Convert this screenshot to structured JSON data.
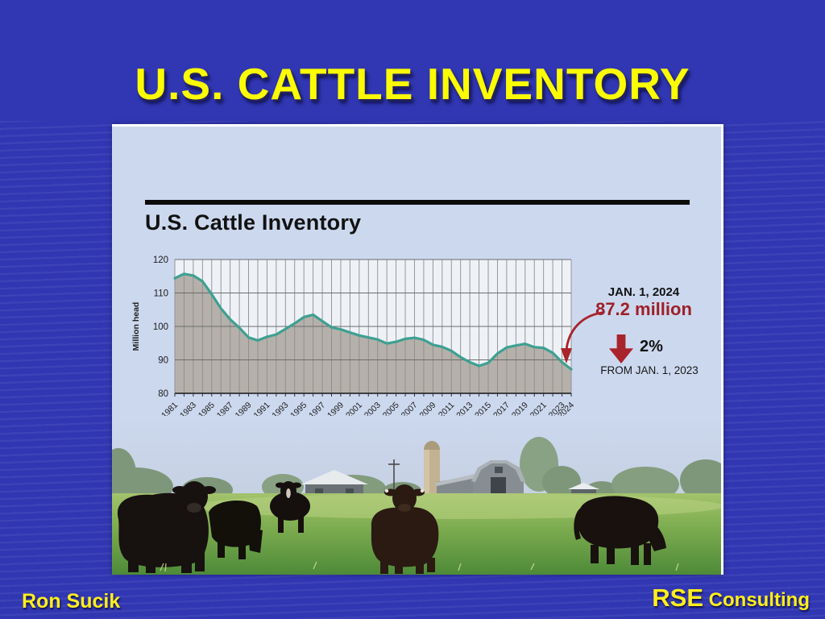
{
  "slide": {
    "title": "U.S. CATTLE INVENTORY",
    "footer": {
      "author": "Ron Sucik",
      "company_bold": "RSE",
      "company_rest": " Consulting"
    },
    "colors": {
      "title_yellow": "#fbfb02",
      "footer_yellow": "#ffee1e",
      "background_blue": "#3137b3"
    }
  },
  "figure": {
    "heading": "U.S. Cattle Inventory",
    "annotations": {
      "date_label": "JAN. 1, 2024",
      "value_label": "87.2 million",
      "percent_label": "2%",
      "from_label": "FROM JAN. 1, 2023",
      "accent_red": "#a8242a"
    },
    "scene_description": "cattle grazing in a green pasture with barns and a silo"
  },
  "chart_data": {
    "type": "area",
    "title": "U.S. Cattle Inventory",
    "xlabel": "",
    "ylabel": "Million head",
    "ylim": [
      80,
      120
    ],
    "y_ticks": [
      80,
      90,
      100,
      110,
      120
    ],
    "grid": true,
    "line_color": "#3ea092",
    "area_color": "#b5b1aa",
    "plot_bg": "#eef2f7",
    "x": [
      1981,
      1982,
      1983,
      1984,
      1985,
      1986,
      1987,
      1988,
      1989,
      1990,
      1991,
      1992,
      1993,
      1994,
      1995,
      1996,
      1997,
      1998,
      1999,
      2000,
      2001,
      2002,
      2003,
      2004,
      2005,
      2006,
      2007,
      2008,
      2009,
      2010,
      2011,
      2012,
      2013,
      2014,
      2015,
      2016,
      2017,
      2018,
      2019,
      2020,
      2021,
      2022,
      2023,
      2024
    ],
    "values": [
      114.4,
      115.7,
      115.2,
      113.5,
      109.6,
      105.4,
      102.1,
      99.6,
      96.7,
      95.8,
      96.9,
      97.6,
      99.2,
      100.9,
      102.8,
      103.5,
      101.6,
      99.7,
      99.1,
      98.2,
      97.3,
      96.7,
      96.1,
      94.9,
      95.4,
      96.3,
      96.6,
      96.0,
      94.5,
      93.9,
      92.7,
      90.8,
      89.3,
      88.2,
      89.1,
      91.9,
      93.7,
      94.3,
      94.8,
      93.8,
      93.6,
      92.1,
      89.3,
      87.2
    ],
    "x_tick_labels": [
      "1981",
      "1983",
      "1985",
      "1987",
      "1989",
      "1991",
      "1993",
      "1995",
      "1997",
      "1999",
      "2001",
      "2003",
      "2005",
      "2007",
      "2009",
      "2011",
      "2013",
      "2015",
      "2017",
      "2019",
      "2021",
      "2023",
      "2024"
    ]
  }
}
